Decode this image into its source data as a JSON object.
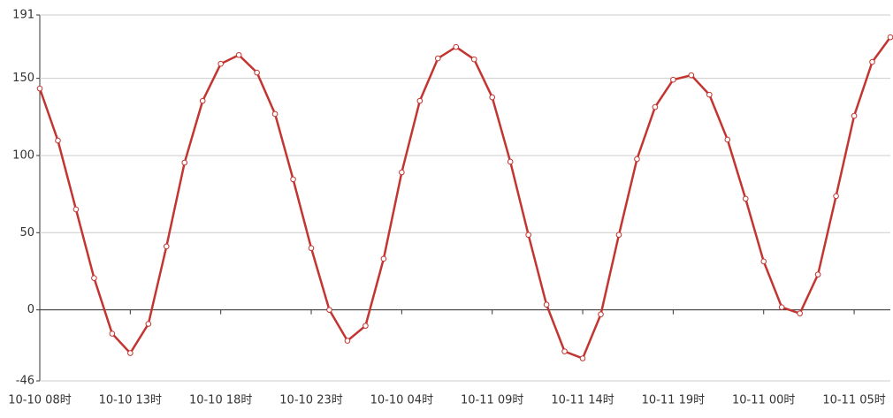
{
  "chart_data": {
    "type": "line",
    "categories": [
      "10-10 08时",
      null,
      null,
      null,
      null,
      "10-10 13时",
      null,
      null,
      null,
      null,
      "10-10 18时",
      null,
      null,
      null,
      null,
      "10-10 23时",
      null,
      null,
      null,
      null,
      "10-10 04时",
      null,
      null,
      null,
      null,
      "10-11 09时",
      null,
      null,
      null,
      null,
      "10-11 14时",
      null,
      null,
      null,
      null,
      "10-11 19时",
      null,
      null,
      null,
      null,
      "10-11 00时",
      null,
      null,
      null,
      null,
      "10-11 05时",
      null,
      null
    ],
    "series": [
      {
        "color": "#c23531",
        "values": [
          143.4,
          109.7,
          65.1,
          20.6,
          -15.4,
          -28,
          -9.1,
          41.1,
          95.4,
          135.4,
          159.4,
          165.1,
          153.7,
          126.9,
          84.6,
          40,
          0,
          -20,
          -10.3,
          33.1,
          89.1,
          135.4,
          162.9,
          170.3,
          162.3,
          137.7,
          96,
          48.6,
          3.4,
          -26.9,
          -31.4,
          -2.9,
          48.6,
          97.7,
          131.4,
          149.1,
          152,
          139.4,
          110.3,
          72,
          31.4,
          1.7,
          -2.3,
          22.9,
          73.7,
          125.7,
          160.6,
          176.6
        ]
      }
    ],
    "ylim": [
      -46,
      191
    ],
    "yticks": [
      -46,
      0,
      50,
      100,
      150,
      191
    ],
    "grid": true
  }
}
